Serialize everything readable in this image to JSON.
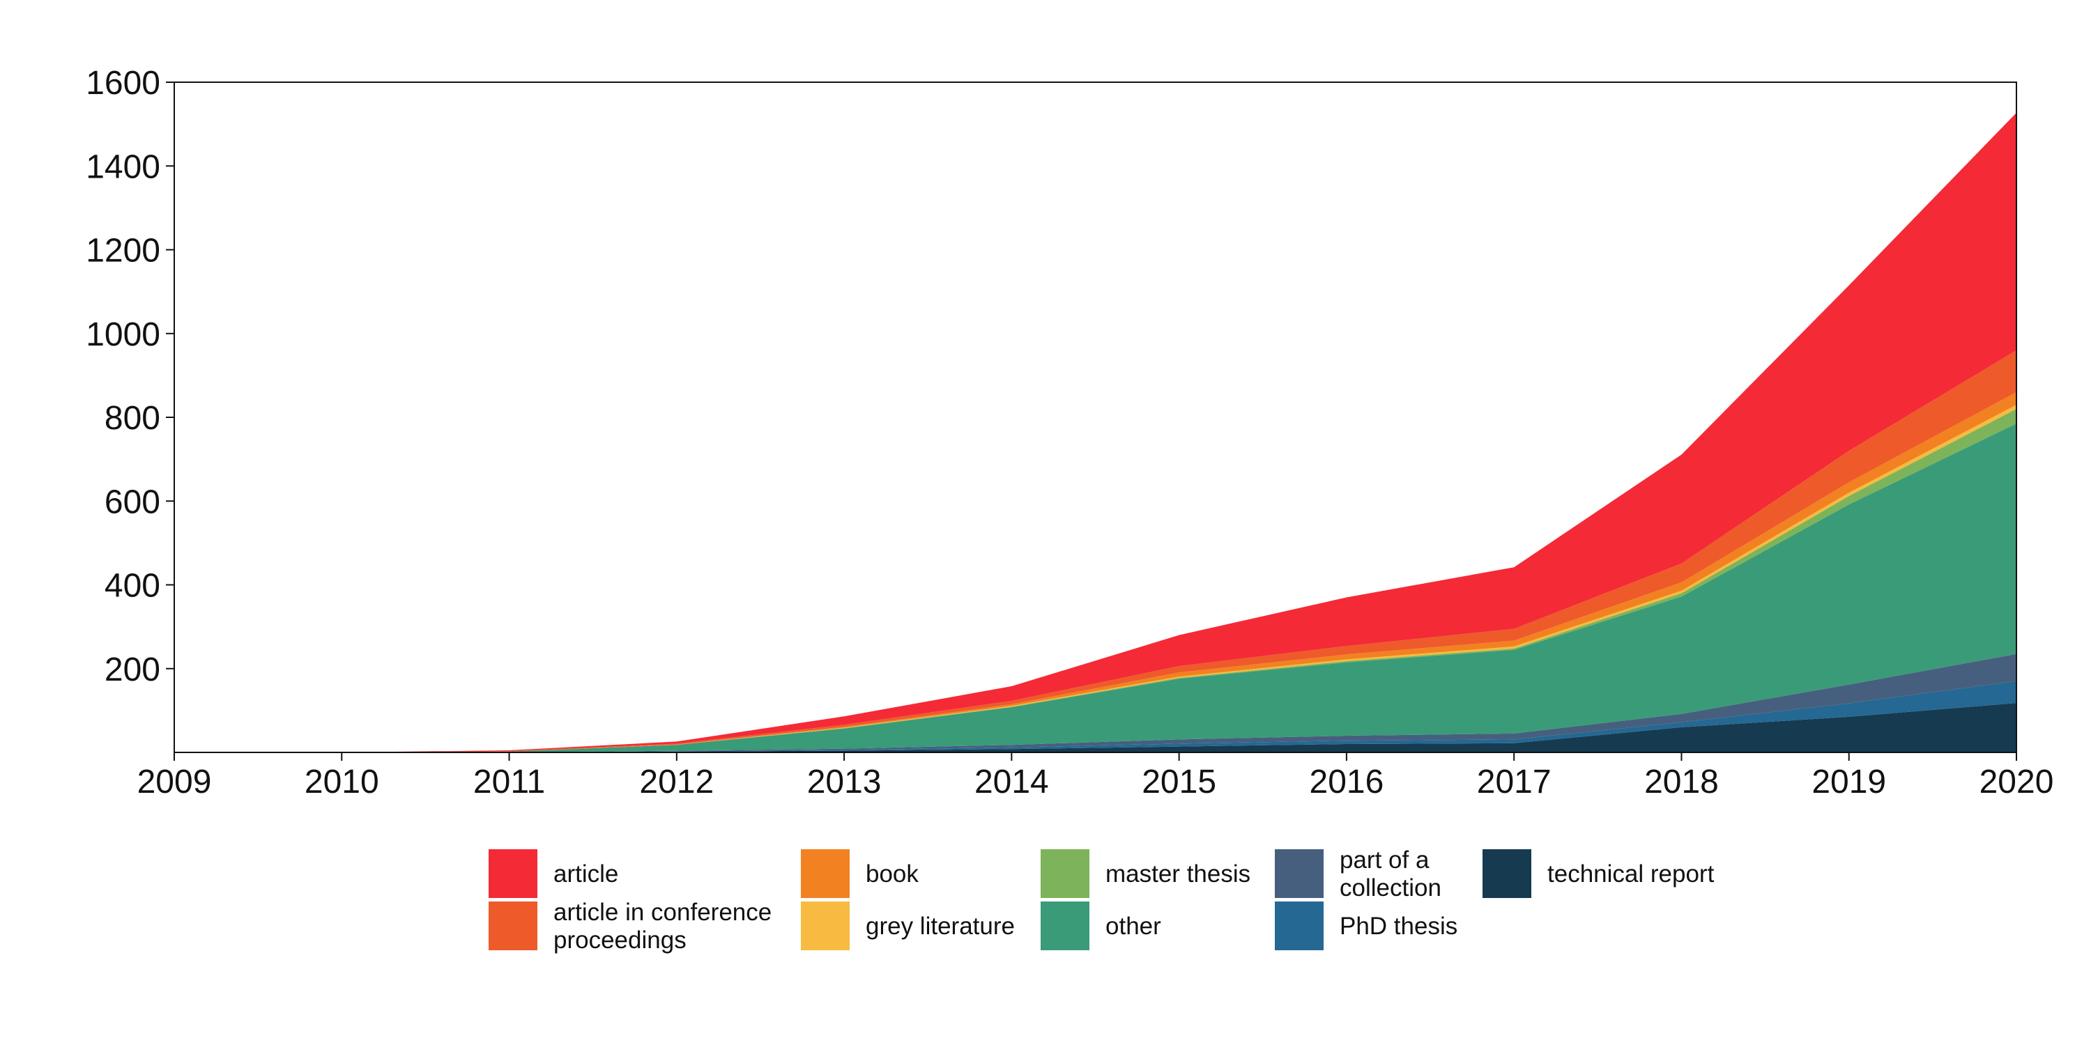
{
  "chart_data": {
    "type": "area",
    "stacked": true,
    "title": "",
    "xlabel": "",
    "ylabel": "",
    "x": [
      2009,
      2010,
      2011,
      2012,
      2013,
      2014,
      2015,
      2016,
      2017,
      2018,
      2019,
      2020
    ],
    "xlim": [
      2009,
      2020
    ],
    "ylim": [
      0,
      1600
    ],
    "x_ticks": [
      "2009",
      "2010",
      "2011",
      "2012",
      "2013",
      "2014",
      "2015",
      "2016",
      "2017",
      "2018",
      "2019",
      "2020"
    ],
    "y_ticks": [
      "200",
      "400",
      "600",
      "800",
      "1000",
      "1200",
      "1400",
      "1600"
    ],
    "grid": false,
    "legend_position": "bottom",
    "series": [
      {
        "name": "technical report",
        "color": "#163a4f",
        "values": [
          0,
          0,
          0,
          2,
          4,
          8,
          14,
          20,
          22,
          60,
          85,
          118
        ]
      },
      {
        "name": "PhD thesis",
        "color": "#246893",
        "values": [
          0,
          0,
          0,
          1,
          2,
          4,
          7,
          8,
          9,
          12,
          32,
          52
        ]
      },
      {
        "name": "part of a collection",
        "color": "#475f7e",
        "values": [
          0,
          0,
          0,
          1,
          3,
          6,
          10,
          12,
          14,
          20,
          45,
          65
        ]
      },
      {
        "name": "other",
        "color": "#3a9b78",
        "values": [
          0,
          0,
          2,
          14,
          48,
          90,
          145,
          175,
          200,
          280,
          430,
          550
        ]
      },
      {
        "name": "master thesis",
        "color": "#7db35a",
        "values": [
          0,
          0,
          0,
          0,
          1,
          1,
          2,
          3,
          3,
          8,
          20,
          35
        ]
      },
      {
        "name": "grey literature",
        "color": "#f6bb40",
        "values": [
          0,
          0,
          0,
          0,
          1,
          2,
          3,
          4,
          5,
          6,
          8,
          10
        ]
      },
      {
        "name": "book",
        "color": "#f28121",
        "values": [
          0,
          0,
          0,
          1,
          2,
          4,
          10,
          12,
          14,
          20,
          25,
          30
        ]
      },
      {
        "name": "article in conference proceedings",
        "color": "#ee5a2a",
        "values": [
          0,
          0,
          1,
          2,
          5,
          8,
          15,
          20,
          28,
          45,
          75,
          100
        ]
      },
      {
        "name": "article",
        "color": "#f42a36",
        "values": [
          0,
          0,
          2,
          5,
          20,
          35,
          74,
          116,
          147,
          260,
          395,
          567
        ]
      }
    ],
    "legend": {
      "columns": [
        [
          "article",
          "article in conference\nproceedings"
        ],
        [
          "book",
          "grey literature"
        ],
        [
          "master thesis",
          "other"
        ],
        [
          "part of a\ncollection",
          "PhD thesis"
        ],
        [
          "technical report"
        ]
      ],
      "colors": [
        [
          "#f42a36",
          "#ee5a2a"
        ],
        [
          "#f28121",
          "#f6bb40"
        ],
        [
          "#7db35a",
          "#3a9b78"
        ],
        [
          "#475f7e",
          "#246893"
        ],
        [
          "#163a4f"
        ]
      ]
    }
  }
}
